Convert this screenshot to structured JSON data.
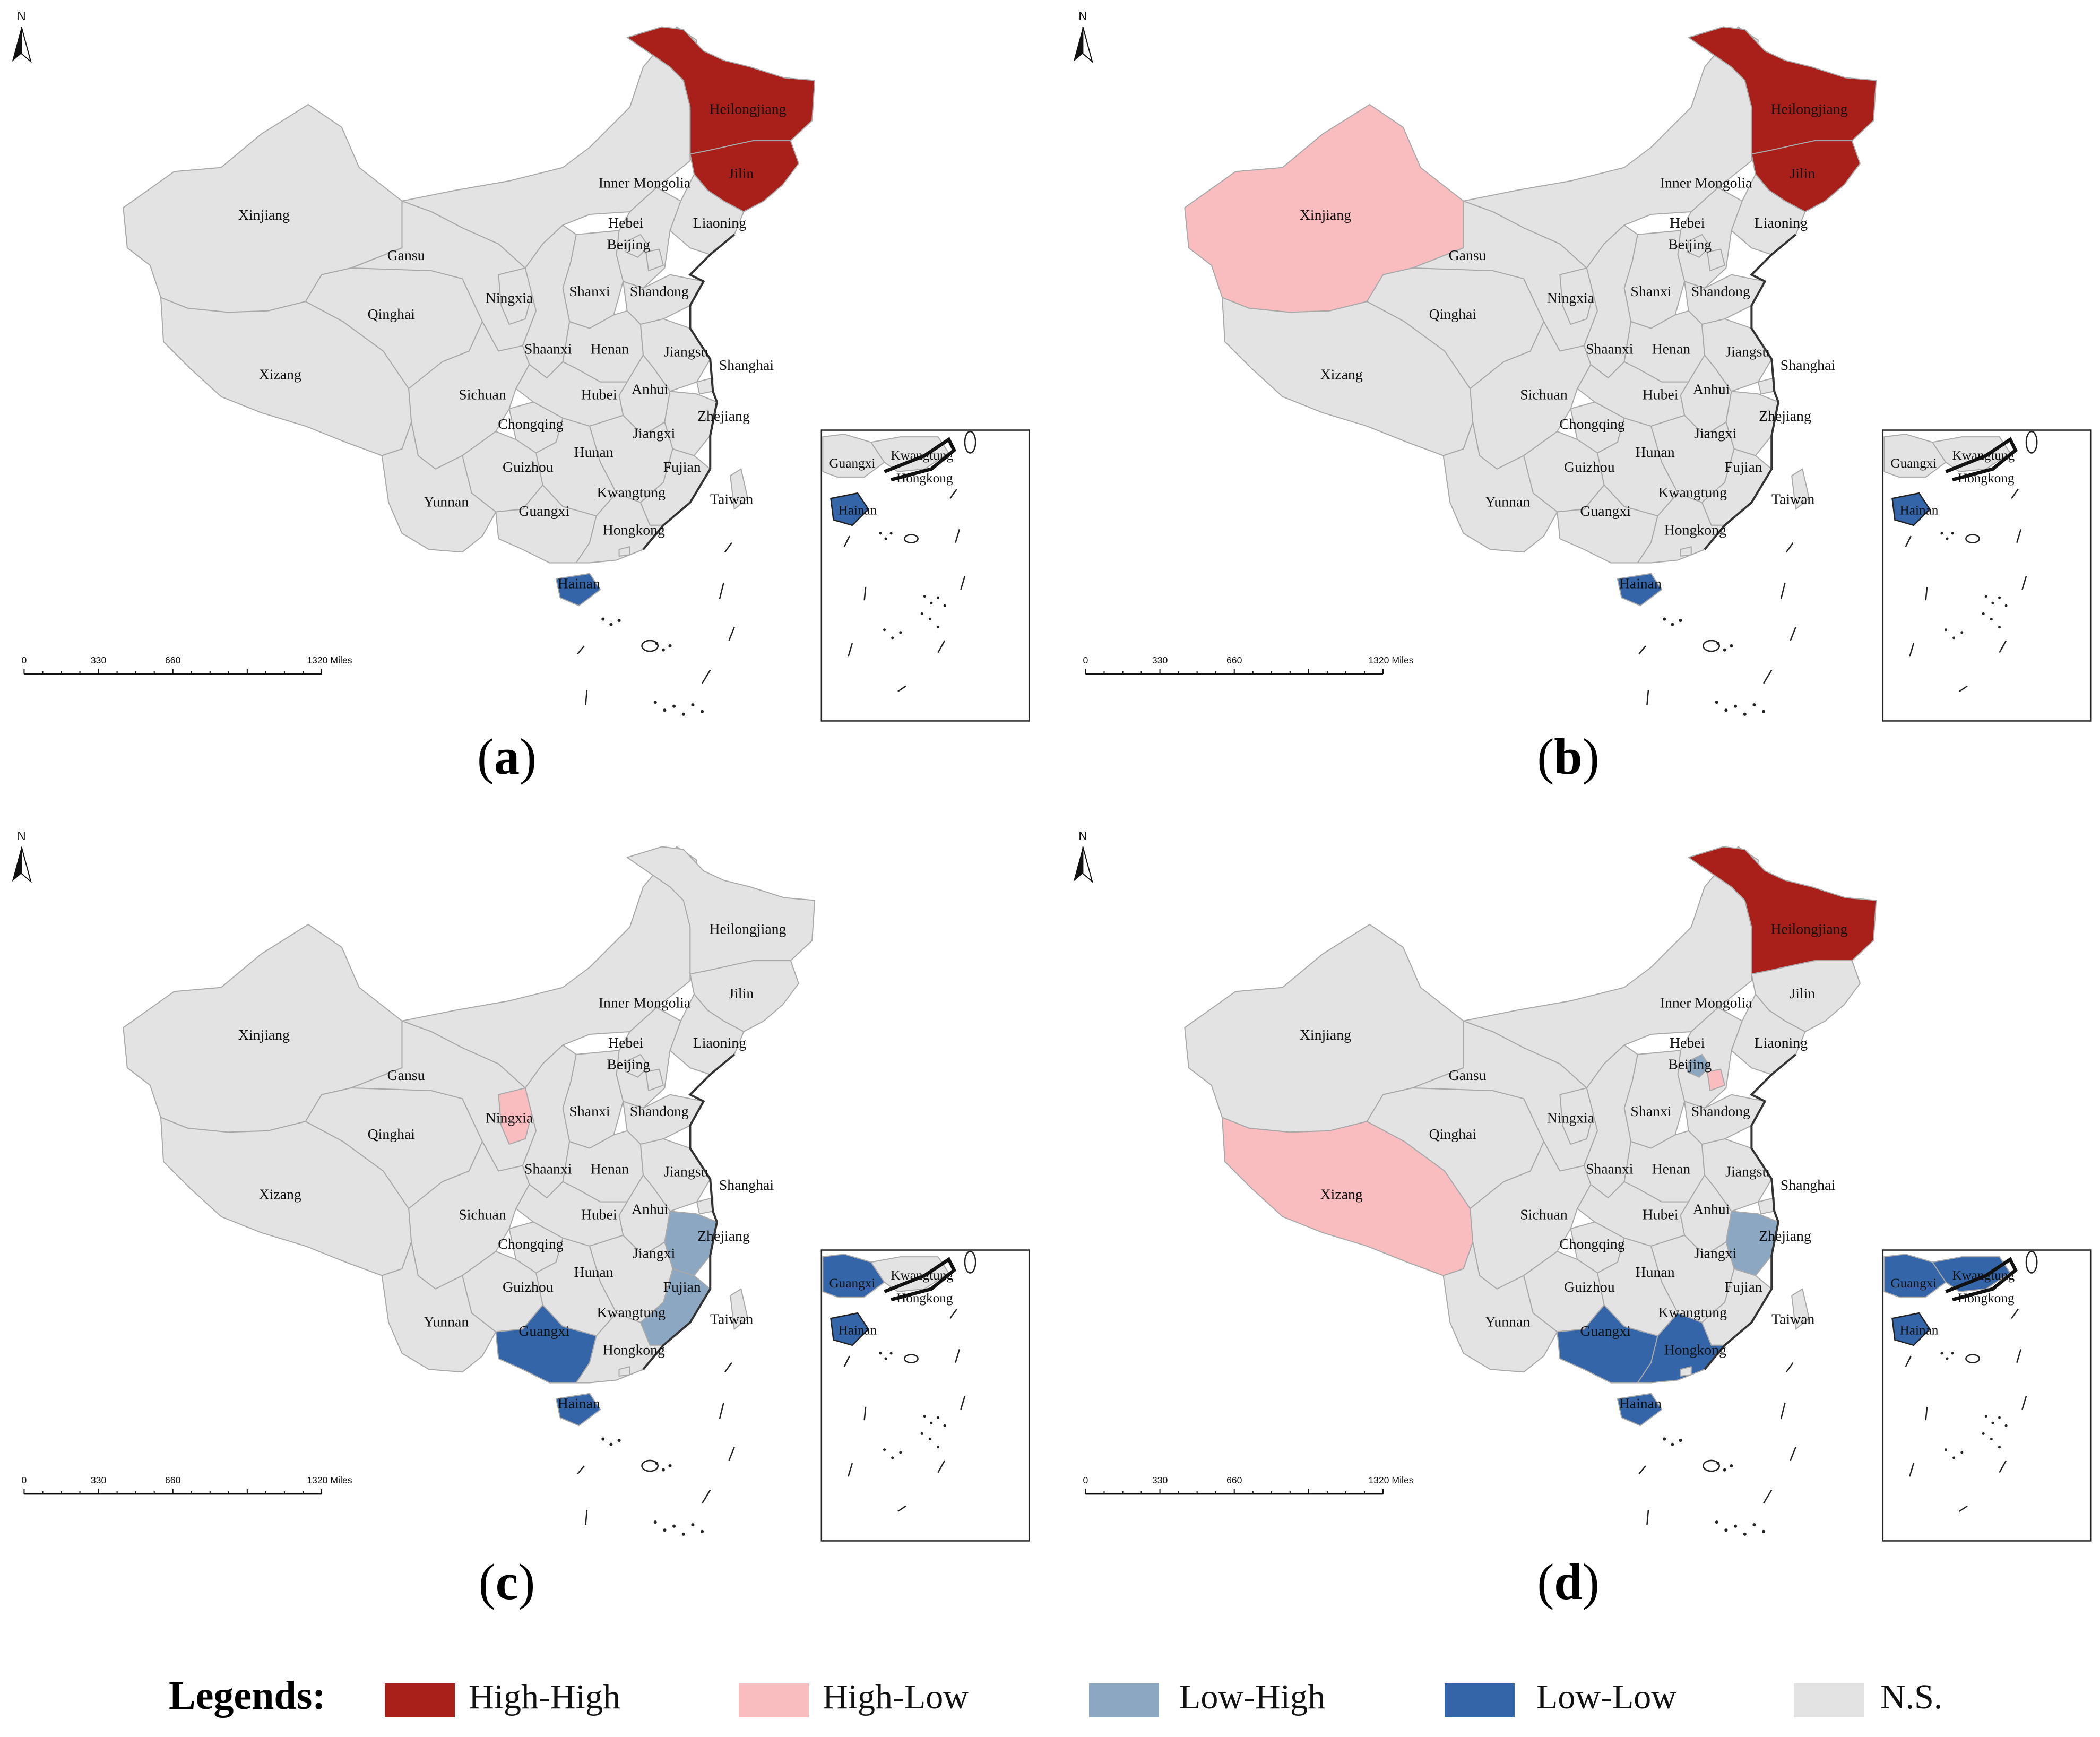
{
  "colors": {
    "High-High": "#a91f1a",
    "High-Low": "#f9bcbf",
    "Low-High": "#8ba7c1",
    "Low-Low": "#3465a8",
    "N.S.": "#e3e3e3",
    "border": "#a9a9a9",
    "outline": "#555555"
  },
  "panels": [
    {
      "tag": "a",
      "regions": {
        "Heilongjiang": "High-High",
        "Jilin": "High-High",
        "Hainan": "Low-Low"
      }
    },
    {
      "tag": "b",
      "regions": {
        "Heilongjiang": "High-High",
        "Jilin": "High-High",
        "Xinjiang": "High-Low",
        "Hainan": "Low-Low"
      }
    },
    {
      "tag": "c",
      "regions": {
        "Ningxia": "High-Low",
        "Zhejiang": "Low-High",
        "Fujian": "Low-High",
        "Guangxi": "Low-Low",
        "Hainan": "Low-Low"
      }
    },
    {
      "tag": "d",
      "regions": {
        "Heilongjiang": "High-High",
        "Xizang": "High-Low",
        "Tianjin": "High-Low",
        "Beijing": "Low-High",
        "Zhejiang": "Low-High",
        "Guangxi": "Low-Low",
        "Kwangtung": "Low-Low",
        "Hainan": "Low-Low"
      }
    }
  ],
  "map_labels": [
    "Heilongjiang",
    "Jilin",
    "Inner Mongolia",
    "Liaoning",
    "Hebei",
    "Beijing",
    "Xinjiang",
    "Gansu",
    "Ningxia",
    "Shanxi",
    "Shandong",
    "Qinghai",
    "Shaanxi",
    "Henan",
    "Jiangsu",
    "Shanghai",
    "Xizang",
    "Sichuan",
    "Hubei",
    "Anhui",
    "Chongqing",
    "Jiangxi",
    "Zhejiang",
    "Hunan",
    "Guizhou",
    "Fujian",
    "Yunnan",
    "Guangxi",
    "Kwangtung",
    "Taiwan",
    "Hongkong",
    "Hainan"
  ],
  "inset_labels": [
    "Guangxi",
    "Kwangtung",
    "Hongkong",
    "Hainan"
  ],
  "north_arrow": "N",
  "scale_bar": {
    "ticks": [
      "0",
      "330",
      "660",
      "1320 Miles"
    ]
  },
  "legend": {
    "title": "Legends:",
    "items": [
      {
        "label": "High-High",
        "color": "#a91f1a"
      },
      {
        "label": "High-Low",
        "color": "#f9bcbf"
      },
      {
        "label": "Low-High",
        "color": "#8ba7c1"
      },
      {
        "label": "Low-Low",
        "color": "#3465a8"
      },
      {
        "label": "N.S.",
        "color": "#e3e3e3"
      }
    ]
  }
}
